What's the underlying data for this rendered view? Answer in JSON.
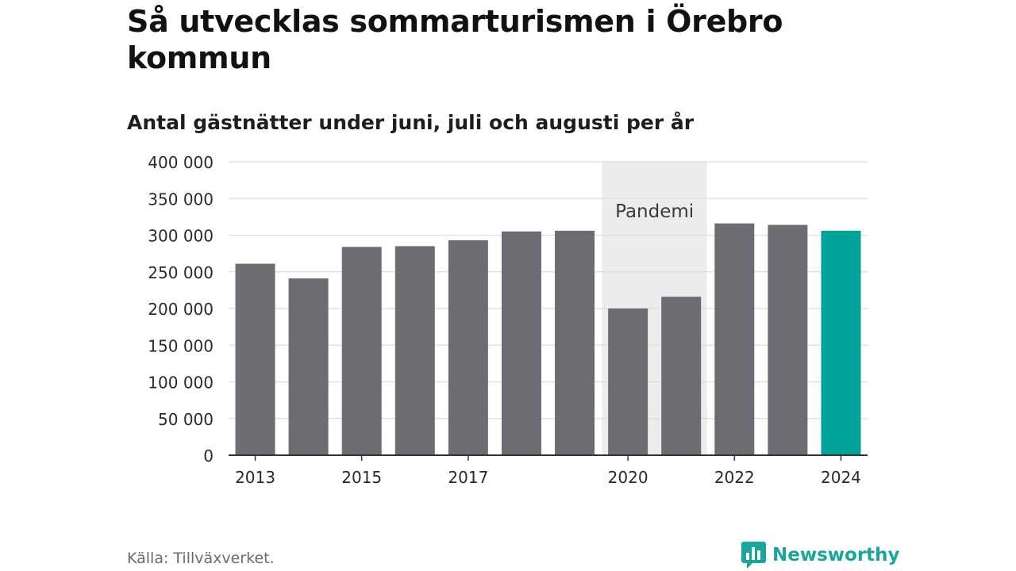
{
  "header": {
    "title": "Så utvecklas sommarturismen i Örebro kommun",
    "subtitle": "Antal gästnätter under juni, juli och augusti per år"
  },
  "chart_data": {
    "type": "bar",
    "categories": [
      "2013",
      "2014",
      "2015",
      "2016",
      "2017",
      "2018",
      "2019",
      "2020",
      "2021",
      "2022",
      "2023",
      "2024"
    ],
    "x_tick_labels": [
      "2013",
      "",
      "2015",
      "",
      "2017",
      "",
      "",
      "2020",
      "",
      "2022",
      "",
      "2024"
    ],
    "values": [
      261000,
      241000,
      284000,
      285000,
      293000,
      305000,
      306000,
      200000,
      216000,
      316000,
      314000,
      306000
    ],
    "highlight_category": "2024",
    "ylim": [
      0,
      400000
    ],
    "yticks": [
      0,
      50000,
      100000,
      150000,
      200000,
      250000,
      300000,
      350000,
      400000
    ],
    "ytick_labels": [
      "0",
      "50 000",
      "100 000",
      "150 000",
      "200 000",
      "250 000",
      "300 000",
      "350 000",
      "400 000"
    ],
    "grid": true,
    "annotation": {
      "label": "Pandemi",
      "range": [
        "2020",
        "2021"
      ]
    },
    "colors": {
      "bar": "#6d6c72",
      "highlight": "#00a39a",
      "annotation_band": "#ececec",
      "gridline": "#dddddd",
      "axis": "#333333"
    }
  },
  "footer": {
    "source": "Källa: Tillväxverket.",
    "brand_name": "Newsworthy",
    "brand_icon": "bar-chart-speech-bubble-icon",
    "brand_color": "#18a59b"
  }
}
